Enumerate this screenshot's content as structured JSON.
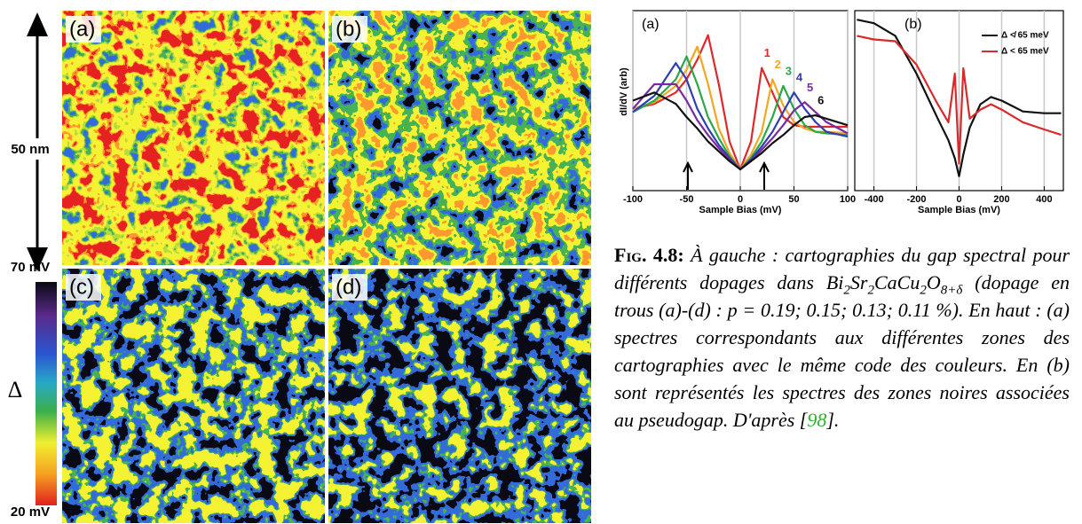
{
  "maps": {
    "labels": [
      "(a)",
      "(b)",
      "(c)",
      "(d)"
    ],
    "scale": "50 nm"
  },
  "colorbar": {
    "top": "70 mV",
    "bottom": "20 mV",
    "symbol": "Δ"
  },
  "chart_data": [
    {
      "type": "line",
      "panel": "(a)",
      "x_label": "Sample Bias (mV)",
      "y_label": "dI/dV (arb)",
      "x": [
        -100,
        -80,
        -60,
        -50,
        -40,
        -30,
        -20,
        -10,
        0,
        10,
        20,
        30,
        40,
        50,
        60,
        70,
        80,
        100
      ],
      "xlim": [
        -100,
        100
      ],
      "xticks": [
        -100,
        -50,
        0,
        50,
        100
      ],
      "ylim": [
        0,
        11
      ],
      "grid": true,
      "series": [
        {
          "name": "1",
          "color": "#e0282a",
          "values": [
            5.0,
            5.3,
            6.0,
            6.8,
            8.0,
            9.5,
            6.5,
            3.0,
            1.3,
            3.0,
            7.5,
            6.0,
            4.5,
            4.0,
            3.9,
            3.9,
            3.9,
            3.9
          ]
        },
        {
          "name": "2",
          "color": "#f5a623",
          "values": [
            5.0,
            5.4,
            6.4,
            7.4,
            8.8,
            6.5,
            3.8,
            2.3,
            1.3,
            2.2,
            3.6,
            6.8,
            5.2,
            4.2,
            3.8,
            3.6,
            3.6,
            3.5
          ]
        },
        {
          "name": "3",
          "color": "#2aa84a",
          "values": [
            4.8,
            5.5,
            6.8,
            8.2,
            6.5,
            4.5,
            3.2,
            2.1,
            1.3,
            2.0,
            3.0,
            4.5,
            6.4,
            5.0,
            4.0,
            3.6,
            3.5,
            3.4
          ]
        },
        {
          "name": "4",
          "color": "#2f3fb0",
          "values": [
            4.8,
            5.8,
            7.8,
            6.8,
            5.0,
            3.8,
            2.8,
            2.0,
            1.3,
            1.9,
            2.7,
            3.6,
            4.8,
            6.0,
            5.0,
            4.2,
            3.6,
            3.3
          ]
        },
        {
          "name": "5",
          "color": "#7a2aa0",
          "values": [
            5.0,
            6.5,
            6.5,
            5.5,
            4.3,
            3.4,
            2.6,
            1.9,
            1.3,
            1.8,
            2.5,
            3.2,
            4.0,
            4.9,
            5.4,
            4.8,
            4.2,
            3.5
          ]
        },
        {
          "name": "6",
          "color": "#111111",
          "values": [
            5.5,
            6.0,
            5.3,
            4.5,
            3.8,
            3.0,
            2.4,
            1.8,
            1.3,
            1.8,
            2.3,
            2.9,
            3.4,
            4.0,
            4.5,
            4.6,
            4.4,
            4.0
          ]
        }
      ]
    },
    {
      "type": "line",
      "panel": "(b)",
      "x_label": "Sample Bias (mV)",
      "x": [
        -480,
        -400,
        -300,
        -200,
        -100,
        -50,
        -20,
        0,
        20,
        50,
        100,
        150,
        200,
        300,
        400,
        480
      ],
      "xlim": [
        -490,
        490
      ],
      "xticks": [
        -400,
        -200,
        0,
        200,
        400
      ],
      "ylim": [
        0,
        10
      ],
      "grid": true,
      "legend": "top-right",
      "series": [
        {
          "name": "Δ ≮ 65 meV",
          "color": "#111111",
          "values": [
            9.5,
            9.3,
            8.6,
            6.5,
            4.0,
            2.8,
            1.8,
            0.8,
            2.0,
            3.5,
            4.8,
            5.2,
            5.0,
            4.4,
            4.3,
            4.3
          ]
        },
        {
          "name": "Δ < 65 meV",
          "color": "#d82a2a",
          "values": [
            8.6,
            8.4,
            8.3,
            7.0,
            4.8,
            3.8,
            6.5,
            1.5,
            6.8,
            4.0,
            4.5,
            4.8,
            4.5,
            3.8,
            3.4,
            3.1
          ]
        }
      ]
    }
  ],
  "caption": {
    "label": "Fig. 4.8:",
    "text1": "À gauche : cartographies du gap spectral pour différents dopages dans ",
    "formula": [
      "Bi",
      "2",
      "Sr",
      "2",
      "CaCu",
      "2",
      "O",
      "8+δ"
    ],
    "text2": " (dopage en trous (a)-(d) : p = 0.19; 0.15; 0.13; 0.11 %). En haut : (a) spectres correspondants aux différentes zones des cartographies avec le même code des couleurs. En (b) sont représentés les spectres des zones noires associées au pseudogap. D'après [",
    "ref": "98",
    "text3": "]."
  }
}
